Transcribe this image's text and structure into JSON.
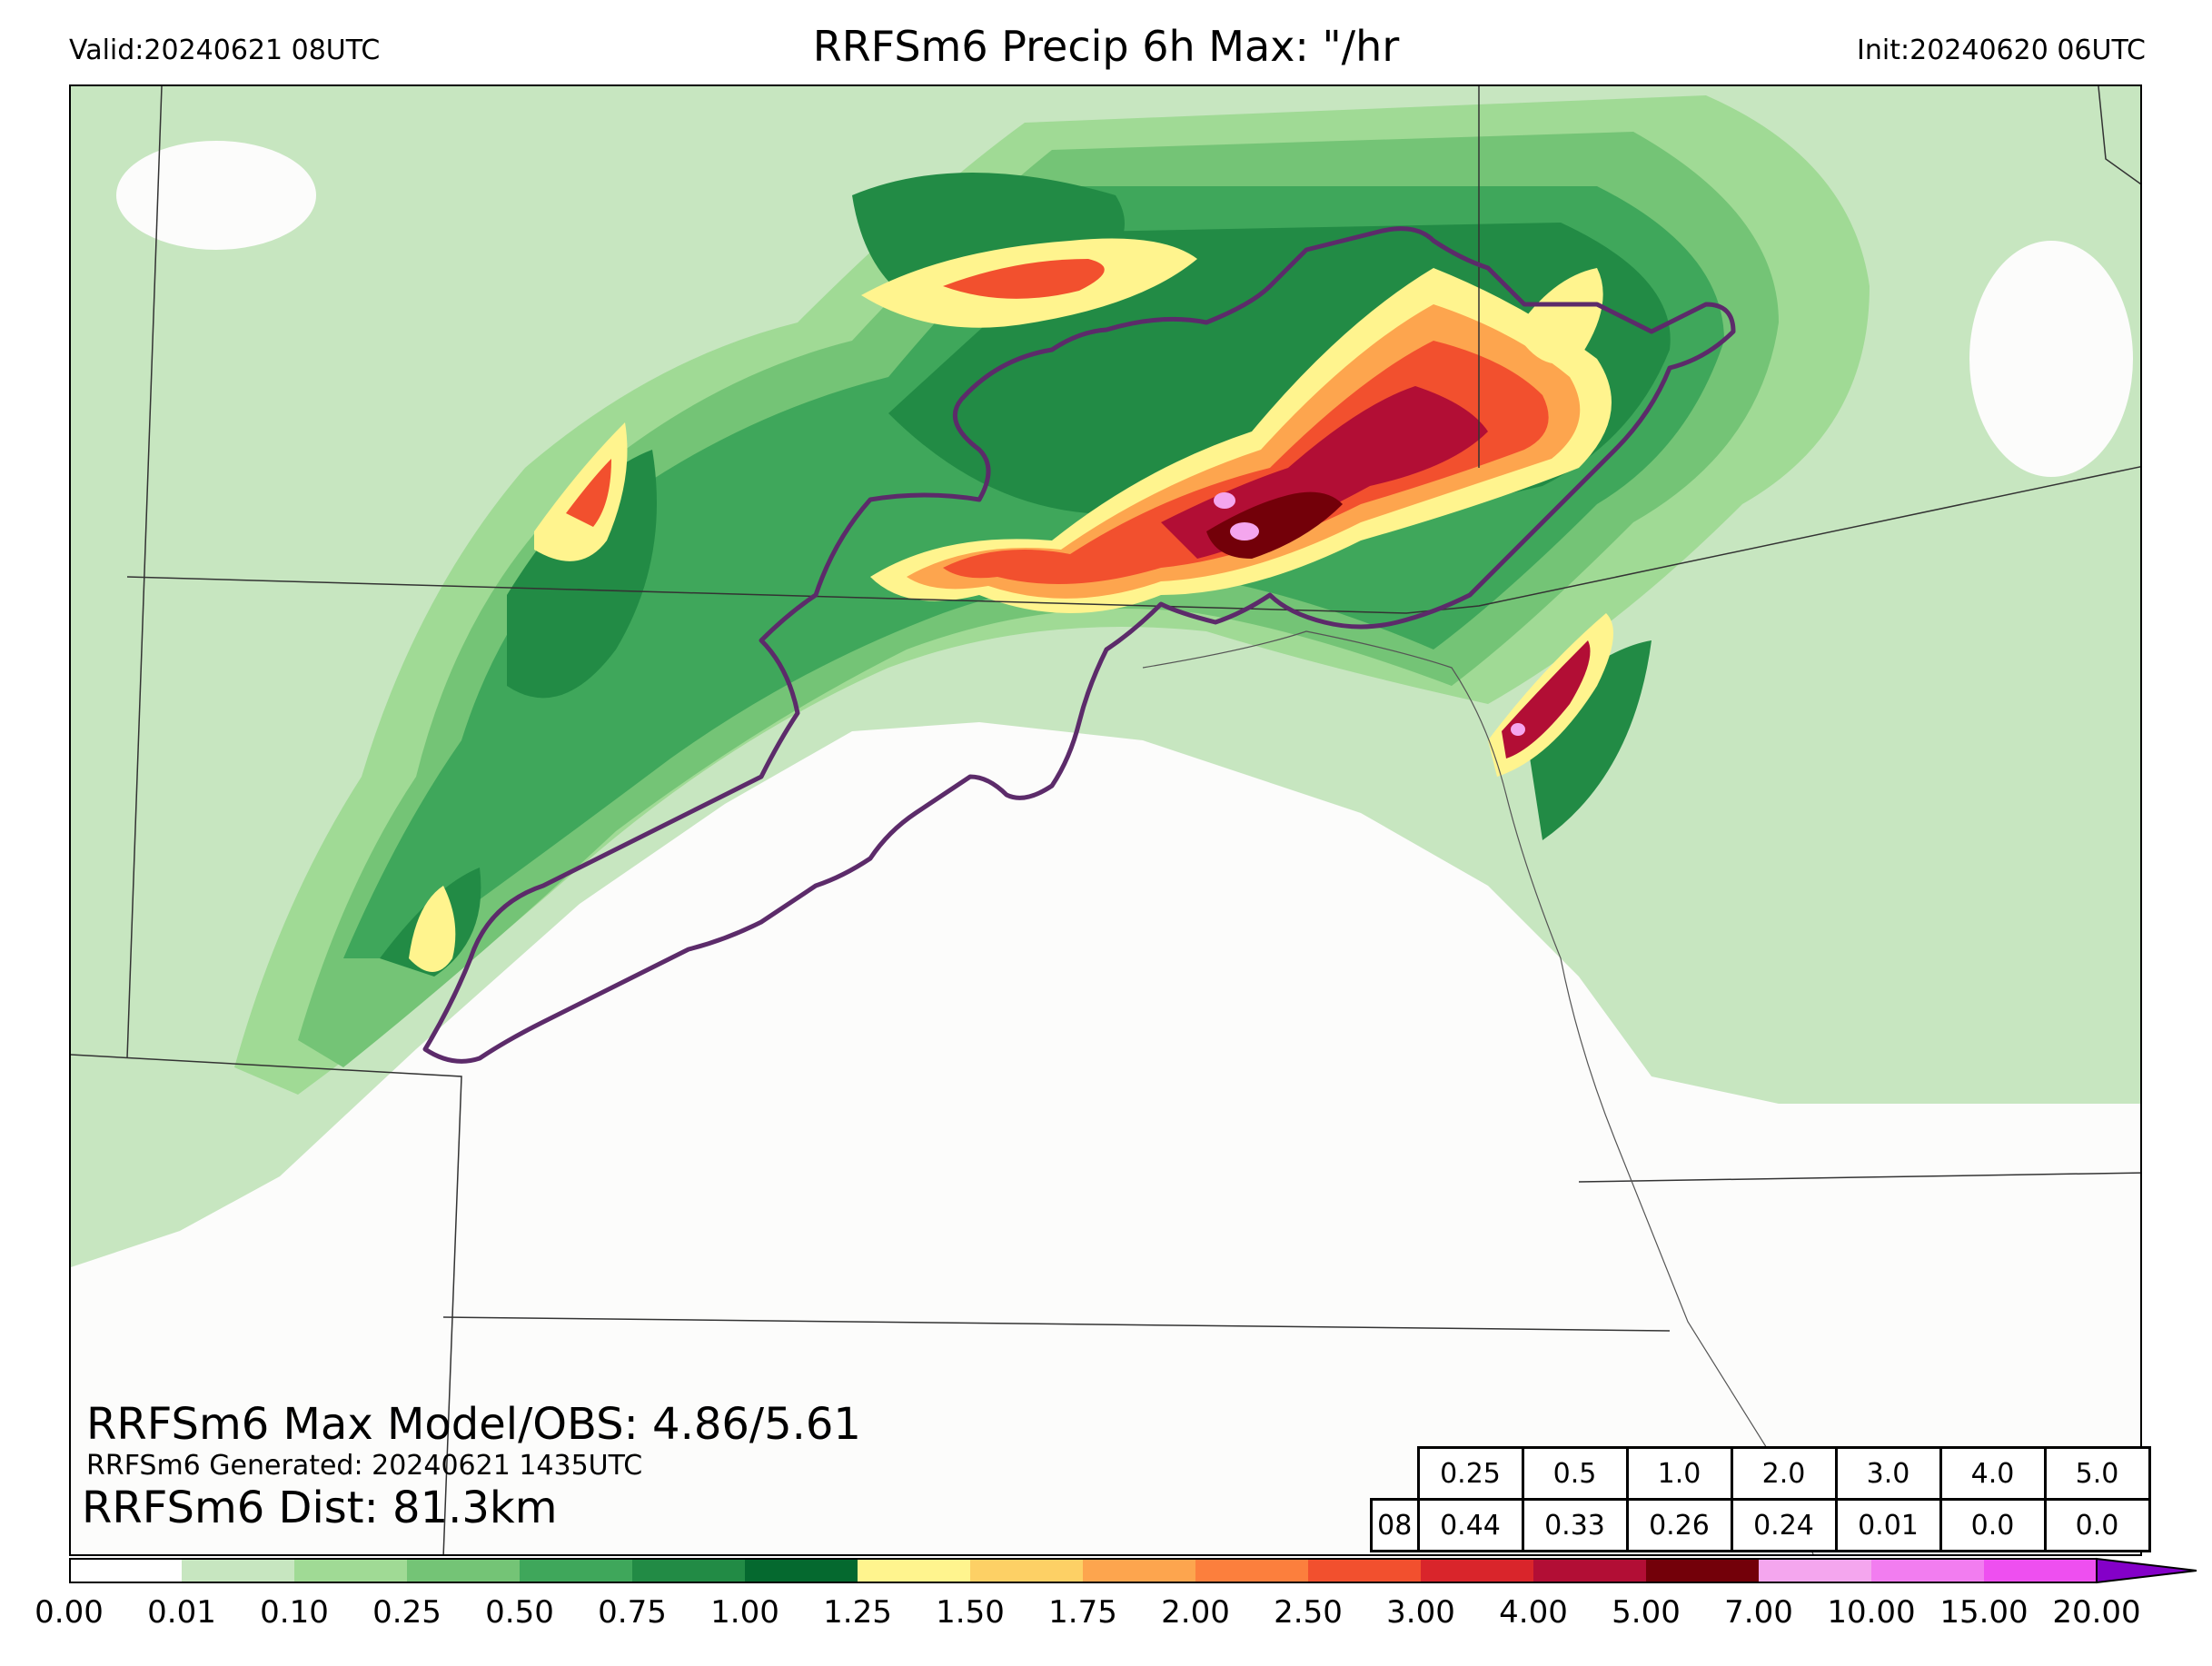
{
  "header": {
    "valid": "Valid:20240621 08UTC",
    "title": "RRFSm6 Precip 6h Max: \"/hr",
    "init": "Init:20240620 06UTC"
  },
  "stats": {
    "max_line": "RRFSm6 Max Model/OBS: 4.86/5.61",
    "generated_line": "RRFSm6 Generated: 20240621 1435UTC",
    "dist_line": "RRFSm6 Dist: 81.3km"
  },
  "threshold_table": {
    "headers": [
      "0.25",
      "0.5",
      "1.0",
      "2.0",
      "3.0",
      "4.0",
      "5.0"
    ],
    "row_label": "08",
    "values": [
      "0.44",
      "0.33",
      "0.26",
      "0.24",
      "0.01",
      "0.0",
      "0.0"
    ]
  },
  "colorbar": {
    "ticks": [
      "0.00",
      "0.01",
      "0.10",
      "0.25",
      "0.50",
      "0.75",
      "1.00",
      "1.25",
      "1.50",
      "1.75",
      "2.00",
      "2.50",
      "3.00",
      "4.00",
      "5.00",
      "7.00",
      "10.00",
      "15.00",
      "20.00"
    ],
    "colors": [
      "#ffffff",
      "#c7e6c0",
      "#a0da95",
      "#74c476",
      "#3fa75b",
      "#228b45",
      "#05692f",
      "#fff48e",
      "#fdd065",
      "#fda54e",
      "#fc7f3d",
      "#f2502e",
      "#d9252b",
      "#b20e35",
      "#730009",
      "#f4a6ee",
      "#f27df0",
      "#ee4ff0",
      "#dd1cf3",
      "#b000d8",
      "#8400c8"
    ]
  },
  "map_colors": {
    "very_light": "#c7e6c0",
    "light": "#a0da95",
    "medium": "#74c476",
    "green": "#3fa75b",
    "dark_green": "#228b45",
    "yellow": "#fff48e",
    "orange": "#fda54e",
    "red": "#f2502e",
    "dark_red": "#b20e35",
    "maroon": "#730009",
    "pink": "#f4a6ee",
    "outline": "#5c2b6a"
  }
}
